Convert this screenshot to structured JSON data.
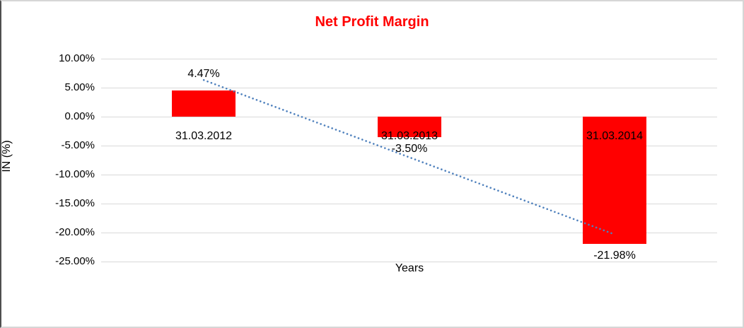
{
  "chart_data": {
    "type": "bar",
    "title": "Net Profit Margin",
    "xlabel": "Years",
    "ylabel": "IN (%)",
    "categories": [
      "31.03.2012",
      "31.03.2013",
      "31.03.2014"
    ],
    "series": [
      {
        "name": "Net Profit Margin",
        "values": [
          4.47,
          -3.5,
          -21.98
        ]
      }
    ],
    "value_labels": [
      "4.47%",
      "-3.50%",
      "-21.98%"
    ],
    "y_tick_labels": [
      "10.00%",
      "5.00%",
      "0.00%",
      "-5.00%",
      "-10.00%",
      "-15.00%",
      "-20.00%",
      "-25.00%"
    ],
    "y_tick_values": [
      10,
      5,
      0,
      -5,
      -10,
      -15,
      -20,
      -25
    ],
    "ylim": [
      -25,
      10
    ],
    "grid": true,
    "legend_position": "none",
    "bar_color": "#ff0000",
    "title_color": "#ff0000",
    "gridline_color": "#d9d9d9",
    "trendline": {
      "type": "linear",
      "style": "dotted",
      "color": "#4f81bd",
      "start_value": 6.31,
      "end_value": -20.31
    }
  }
}
